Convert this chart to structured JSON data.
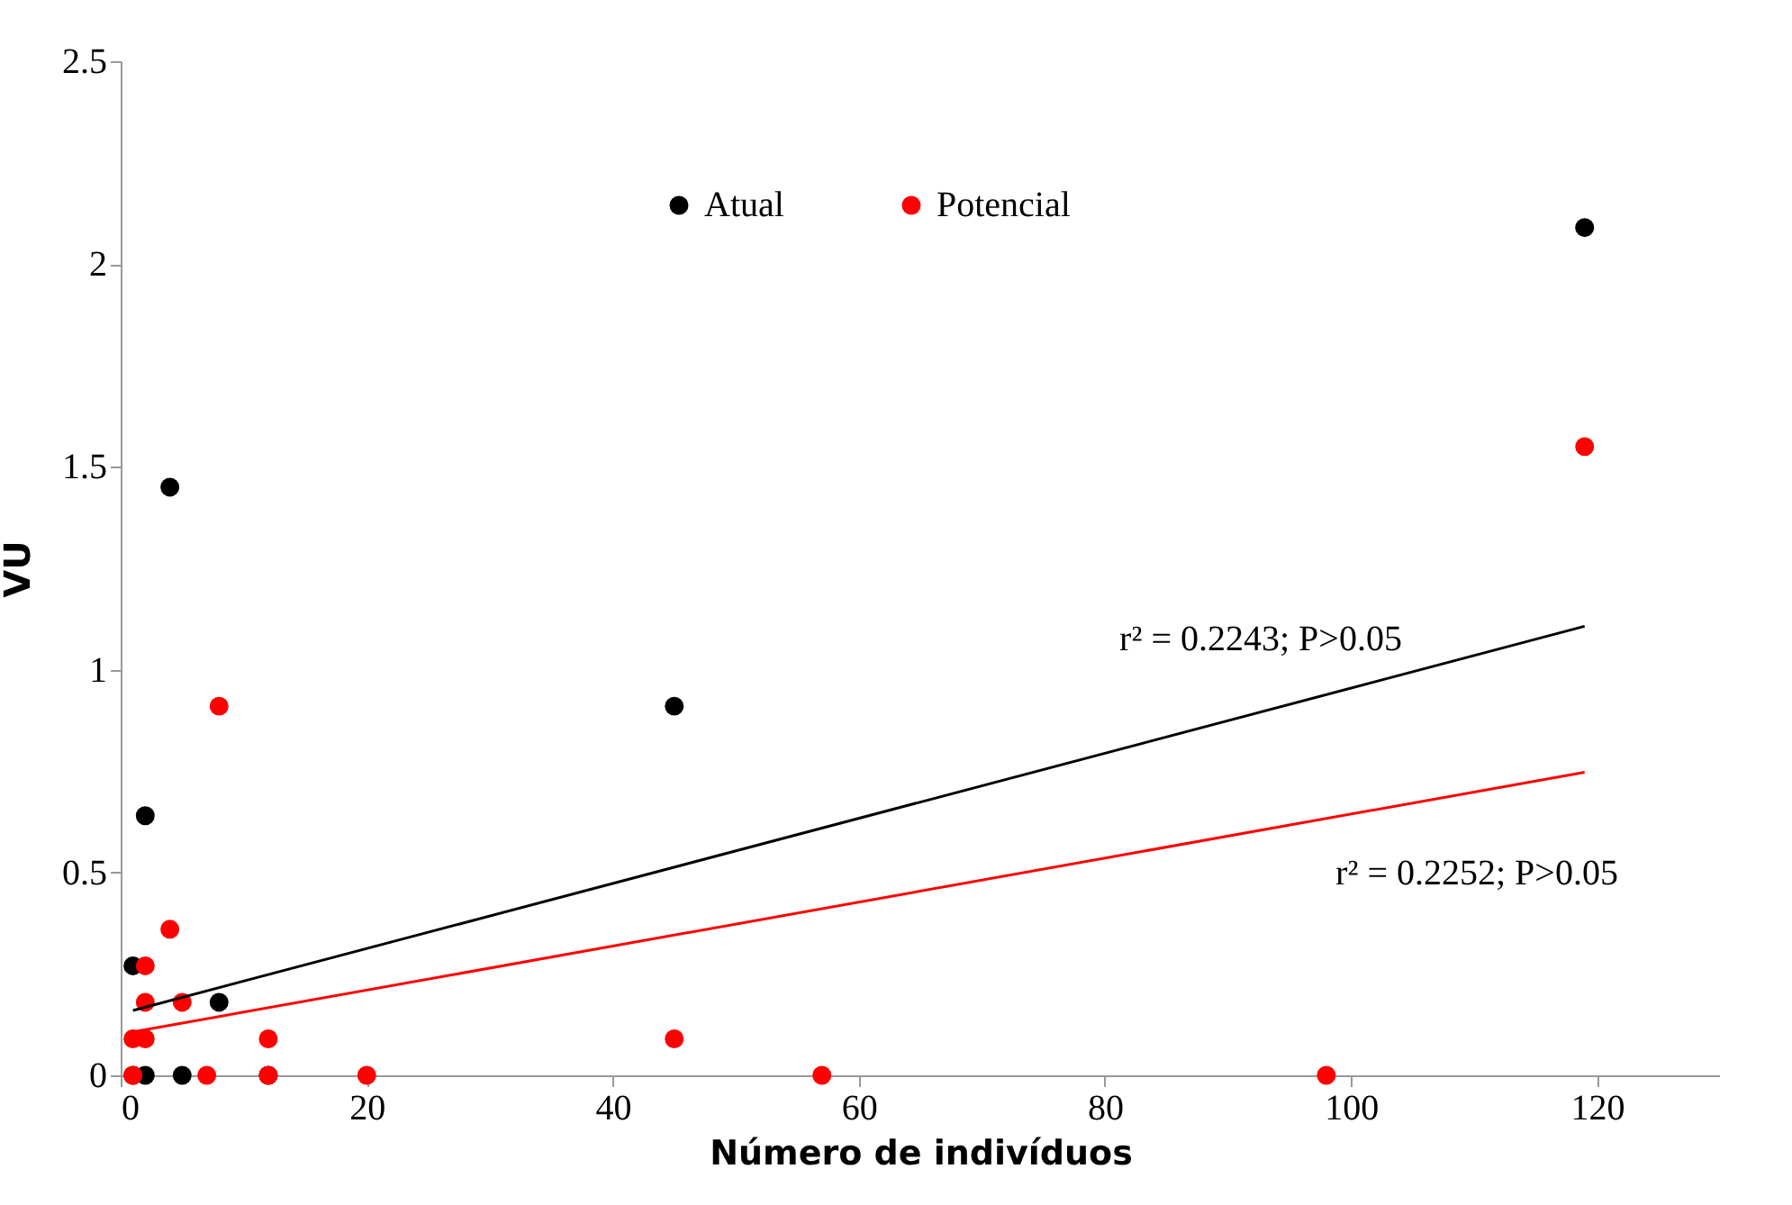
{
  "chart_data": {
    "type": "scatter",
    "xlabel": "Número de indivíduos",
    "ylabel": "VU",
    "xlim": [
      0,
      130
    ],
    "xticks": [
      0,
      20,
      40,
      60,
      80,
      100,
      120
    ],
    "ylim": [
      0,
      2.5
    ],
    "yticks": [
      0,
      0.5,
      1,
      1.5,
      2,
      2.5
    ],
    "grid": false,
    "legend": "top",
    "series": [
      {
        "name": "Atual",
        "color": "#000000",
        "marker": "circle",
        "x": [
          1,
          2,
          4,
          8,
          45,
          119,
          2,
          5,
          12,
          1
        ],
        "values": [
          0.27,
          0.64,
          1.45,
          0.18,
          0.91,
          2.09,
          0,
          0,
          0,
          0
        ]
      },
      {
        "name": "Potencial",
        "color": "#ff0000",
        "marker": "circle",
        "x": [
          1,
          1,
          2,
          2,
          2,
          4,
          5,
          8,
          12,
          12,
          7,
          20,
          45,
          57,
          98,
          119
        ],
        "values": [
          0,
          0.09,
          0.09,
          0.18,
          0.27,
          0.36,
          0.18,
          0.91,
          0.09,
          0,
          0,
          0,
          0.09,
          0,
          0,
          1.55
        ]
      },
      {
        "type": "line",
        "color": "#000000",
        "x": [
          1,
          119
        ],
        "values": [
          0.16,
          1.107
        ]
      },
      {
        "type": "line",
        "color": "#ff0000",
        "x": [
          1,
          119
        ],
        "values": [
          0.107,
          0.747
        ]
      }
    ],
    "annotations": [
      "r² = 0.2243; P>0.05",
      "r² = 0.2252; P>0.05"
    ]
  }
}
